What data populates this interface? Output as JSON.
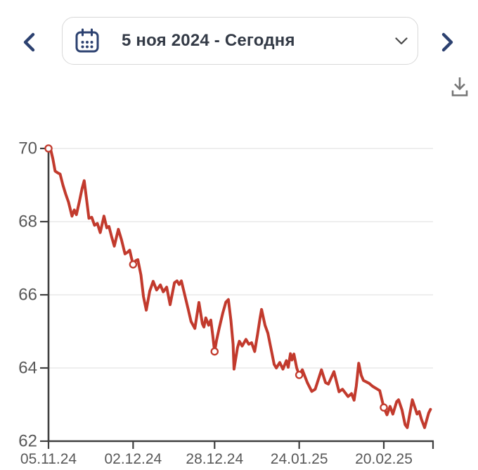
{
  "header": {
    "date_range_label": "5 ноя 2024 - Сегодня"
  },
  "icons": {
    "prev": "chevron-left",
    "calendar": "calendar",
    "expand": "chevron-down",
    "next": "chevron-right",
    "download": "download"
  },
  "colors": {
    "accent": "#2c4170",
    "header_text": "#333a46",
    "box_border": "#d8d8d8",
    "icon_muted": "#767676",
    "line": "#c23a2d",
    "axis": "#3f3f3f",
    "grid": "#e3e3e3",
    "tick_text": "#585858",
    "background": "#ffffff"
  },
  "chart_data": {
    "type": "line",
    "title": "",
    "xlabel": "",
    "ylabel": "",
    "legend": "none",
    "grid": "horizontal",
    "ylim": [
      62,
      70
    ],
    "xlim_days": [
      0,
      122.7
    ],
    "y_ticks": [
      70,
      68,
      66,
      64,
      62
    ],
    "x_ticks": [
      {
        "day": 0,
        "label": "05.11.24"
      },
      {
        "day": 27,
        "label": "02.12.24"
      },
      {
        "day": 53,
        "label": "28.12.24"
      },
      {
        "day": 80,
        "label": "24.01.25"
      },
      {
        "day": 107,
        "label": "20.02.25"
      },
      {
        "day": 122.7,
        "label": ""
      }
    ],
    "series": [
      {
        "name": "value",
        "color": "#c23a2d",
        "points": [
          [
            0,
            70
          ],
          [
            0.7,
            69.97
          ],
          [
            1.4,
            69.72
          ],
          [
            2.1,
            69.38
          ],
          [
            3,
            69.33
          ],
          [
            3.7,
            69.3
          ],
          [
            4.6,
            69.0
          ],
          [
            5.5,
            68.75
          ],
          [
            6.4,
            68.53
          ],
          [
            7.5,
            68.15
          ],
          [
            8.2,
            68.32
          ],
          [
            8.9,
            68.19
          ],
          [
            9.8,
            68.53
          ],
          [
            10.7,
            68.9
          ],
          [
            11.4,
            69.12
          ],
          [
            12,
            68.71
          ],
          [
            12.9,
            68.09
          ],
          [
            13.8,
            68.12
          ],
          [
            14.7,
            67.9
          ],
          [
            15.6,
            67.95
          ],
          [
            16.5,
            67.7
          ],
          [
            17.7,
            68.15
          ],
          [
            18.6,
            67.83
          ],
          [
            19.3,
            67.87
          ],
          [
            20.1,
            67.6
          ],
          [
            21,
            67.33
          ],
          [
            22.3,
            67.79
          ],
          [
            23.3,
            67.5
          ],
          [
            24.4,
            67.12
          ],
          [
            25.3,
            67.17
          ],
          [
            25.9,
            67.22
          ],
          [
            26.5,
            67.0
          ],
          [
            27,
            66.83
          ],
          [
            27.8,
            66.93
          ],
          [
            28.5,
            66.96
          ],
          [
            29.5,
            66.54
          ],
          [
            30.3,
            65.95
          ],
          [
            31.2,
            65.58
          ],
          [
            32.3,
            66.1
          ],
          [
            33.4,
            66.37
          ],
          [
            34.5,
            66.13
          ],
          [
            35.7,
            66.27
          ],
          [
            36.6,
            66.08
          ],
          [
            37.7,
            66.21
          ],
          [
            38.8,
            65.73
          ],
          [
            40.2,
            66.33
          ],
          [
            41,
            66.38
          ],
          [
            41.7,
            66.28
          ],
          [
            42.4,
            66.38
          ],
          [
            44.6,
            65.6
          ],
          [
            45.5,
            65.27
          ],
          [
            46.7,
            65.08
          ],
          [
            48,
            65.79
          ],
          [
            49.1,
            65.21
          ],
          [
            49.6,
            65.12
          ],
          [
            50.2,
            65.37
          ],
          [
            51.1,
            65.17
          ],
          [
            51.8,
            65.31
          ],
          [
            52.4,
            64.9
          ],
          [
            53,
            64.45
          ],
          [
            53.6,
            64.75
          ],
          [
            54.5,
            65.1
          ],
          [
            55.6,
            65.5
          ],
          [
            56.6,
            65.8
          ],
          [
            57.4,
            65.87
          ],
          [
            58.2,
            65.3
          ],
          [
            58.9,
            64.65
          ],
          [
            59.2,
            63.97
          ],
          [
            60.3,
            64.55
          ],
          [
            60.9,
            64.73
          ],
          [
            61.8,
            64.6
          ],
          [
            63,
            64.78
          ],
          [
            63.9,
            64.65
          ],
          [
            64.8,
            64.69
          ],
          [
            65.8,
            64.45
          ],
          [
            66.7,
            64.92
          ],
          [
            67.5,
            65.36
          ],
          [
            68,
            65.6
          ],
          [
            69.1,
            65.17
          ],
          [
            70,
            64.95
          ],
          [
            71,
            64.53
          ],
          [
            72,
            64.1
          ],
          [
            72.7,
            64.0
          ],
          [
            73.8,
            64.15
          ],
          [
            74.8,
            63.97
          ],
          [
            75.9,
            64.2
          ],
          [
            76.5,
            64.02
          ],
          [
            77.2,
            64.39
          ],
          [
            77.7,
            64.22
          ],
          [
            78.3,
            64.38
          ],
          [
            79.2,
            64.0
          ],
          [
            80,
            63.81
          ],
          [
            81,
            63.95
          ],
          [
            82.6,
            63.6
          ],
          [
            84,
            63.36
          ],
          [
            85.1,
            63.42
          ],
          [
            87.1,
            63.95
          ],
          [
            88.4,
            63.6
          ],
          [
            89.3,
            63.56
          ],
          [
            91.1,
            63.9
          ],
          [
            92.7,
            63.35
          ],
          [
            93.8,
            63.42
          ],
          [
            95.6,
            63.22
          ],
          [
            96.7,
            63.3
          ],
          [
            97.5,
            63.12
          ],
          [
            98.2,
            63.5
          ],
          [
            99,
            64.13
          ],
          [
            99.8,
            63.8
          ],
          [
            100.5,
            63.66
          ],
          [
            102.3,
            63.58
          ],
          [
            103.4,
            63.5
          ],
          [
            105.7,
            63.38
          ],
          [
            107,
            62.92
          ],
          [
            108,
            62.72
          ],
          [
            109,
            62.95
          ],
          [
            109.9,
            62.74
          ],
          [
            111.1,
            63.08
          ],
          [
            111.7,
            63.13
          ],
          [
            112.8,
            62.85
          ],
          [
            113.8,
            62.45
          ],
          [
            114.5,
            62.37
          ],
          [
            116.1,
            63.13
          ],
          [
            117.6,
            62.74
          ],
          [
            118.3,
            62.81
          ],
          [
            119,
            62.6
          ],
          [
            120,
            62.37
          ],
          [
            121.3,
            62.77
          ],
          [
            121.9,
            62.87
          ]
        ]
      }
    ],
    "markers": [
      [
        0,
        70
      ],
      [
        27,
        66.83
      ],
      [
        53,
        64.45
      ],
      [
        80,
        63.81
      ],
      [
        107,
        62.92
      ]
    ]
  }
}
